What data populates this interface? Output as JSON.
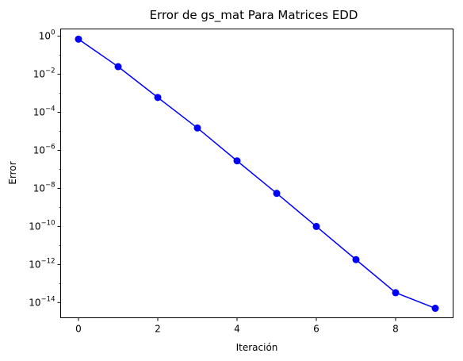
{
  "chart_data": {
    "type": "line",
    "title": "Error de gs_mat Para Matrices EDD",
    "xlabel": "Iteración",
    "ylabel": "Error",
    "yscale": "log",
    "grid": false,
    "x": [
      0,
      1,
      2,
      3,
      4,
      5,
      6,
      7,
      8,
      9
    ],
    "xlim": [
      -0.45,
      9.45
    ],
    "xticks": [
      0,
      2,
      4,
      6,
      8
    ],
    "ylim_exp": [
      -14.8,
      0.38
    ],
    "ytick_exponents": [
      0,
      -2,
      -4,
      -6,
      -8,
      -10,
      -12,
      -14
    ],
    "series": [
      {
        "color": "#0000ff",
        "marker": "o",
        "values": [
          0.7,
          0.025,
          0.0006,
          1.5e-05,
          2.8e-07,
          5.5e-09,
          1e-10,
          1.8e-12,
          3.3e-14,
          5e-15
        ]
      }
    ]
  }
}
